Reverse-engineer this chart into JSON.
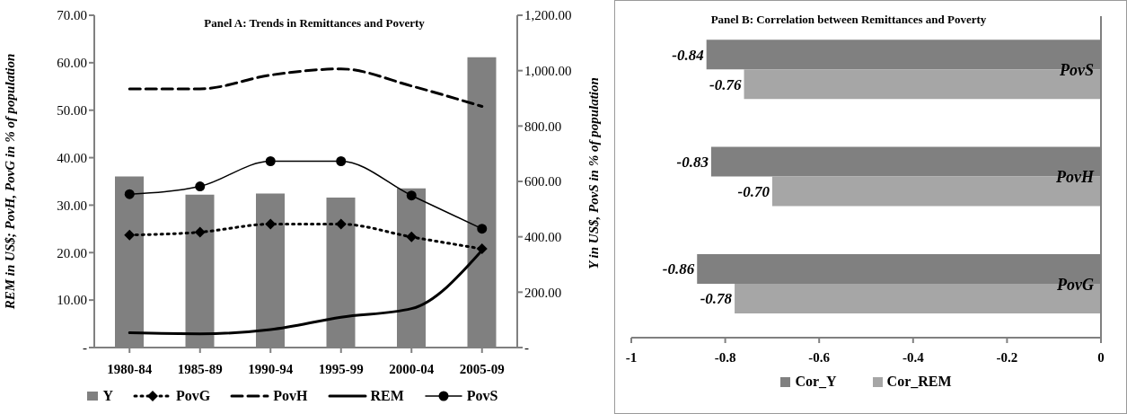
{
  "chart_data": [
    {
      "type": "bar",
      "title": "Panel A: Trends in Remittances and Poverty",
      "ylabel": "REM in US$; PovH, PovG in % of population",
      "y2label": "Y in US$, PovS in % of population",
      "categories": [
        "1980-84",
        "1985-89",
        "1990-94",
        "1995-99",
        "2000-04",
        "2005-09"
      ],
      "series": [
        {
          "name": "Y",
          "type": "bar",
          "axis": "y2",
          "color": "#808080",
          "values": [
            618,
            552,
            556,
            542,
            575,
            1048
          ]
        },
        {
          "name": "PovG",
          "type": "line",
          "color": "#000000",
          "marker": "diamond",
          "line_style": "dotted",
          "values": [
            23.7,
            24.3,
            26.0,
            26.0,
            23.3,
            20.8
          ]
        },
        {
          "name": "PovH",
          "type": "line",
          "color": "#000000",
          "marker": "none",
          "line_style": "dashed",
          "values": [
            54.5,
            54.5,
            57.4,
            58.7,
            55.1,
            50.8
          ]
        },
        {
          "name": "REM",
          "type": "line",
          "color": "#000000",
          "marker": "none",
          "line_style": "solid",
          "values": [
            3.1,
            2.9,
            3.8,
            6.4,
            8.2,
            20.5
          ]
        },
        {
          "name": "PovS",
          "type": "line",
          "axis": "y2",
          "color": "#000000",
          "marker": "circle",
          "line_style": "solid",
          "values": [
            554,
            582,
            673,
            673,
            549,
            429
          ]
        }
      ],
      "ylim": [
        0,
        70
      ],
      "yticks": [
        {
          "value": 0,
          "label": "-"
        },
        {
          "value": 10,
          "label": "10.00"
        },
        {
          "value": 20,
          "label": "20.00"
        },
        {
          "value": 30,
          "label": "30.00"
        },
        {
          "value": 40,
          "label": "40.00"
        },
        {
          "value": 50,
          "label": "50.00"
        },
        {
          "value": 60,
          "label": "60.00"
        },
        {
          "value": 70,
          "label": "70.00"
        }
      ],
      "y2lim": [
        0,
        1200
      ],
      "y2ticks": [
        {
          "value": 0,
          "label": "-"
        },
        {
          "value": 200,
          "label": "200.00"
        },
        {
          "value": 400,
          "label": "400.00"
        },
        {
          "value": 600,
          "label": "600.00"
        },
        {
          "value": 800,
          "label": "800.00"
        },
        {
          "value": 1000,
          "label": "1,000.00"
        },
        {
          "value": 1200,
          "label": "1,200.00"
        }
      ],
      "grid": false,
      "legend": "bottom"
    },
    {
      "type": "bar",
      "orientation": "horizontal",
      "title": "Panel B: Correlation between Remittances and Poverty",
      "categories": [
        "PovS",
        "PovH",
        "PovG"
      ],
      "series": [
        {
          "name": "Cor_Y",
          "color": "#808080",
          "values": [
            -0.84,
            -0.83,
            -0.86
          ],
          "value_labels": [
            "-0.84",
            "-0.83",
            "-0.86"
          ]
        },
        {
          "name": "Cor_REM",
          "color": "#a6a6a6",
          "values": [
            -0.76,
            -0.7,
            -0.78
          ],
          "value_labels": [
            "-0.76",
            "-0.70",
            "-0.78"
          ]
        }
      ],
      "xlim": [
        -1,
        0
      ],
      "xticks": [
        -1,
        -0.8,
        -0.6,
        -0.4,
        -0.2,
        0
      ],
      "grid": false,
      "legend": "bottom"
    }
  ]
}
